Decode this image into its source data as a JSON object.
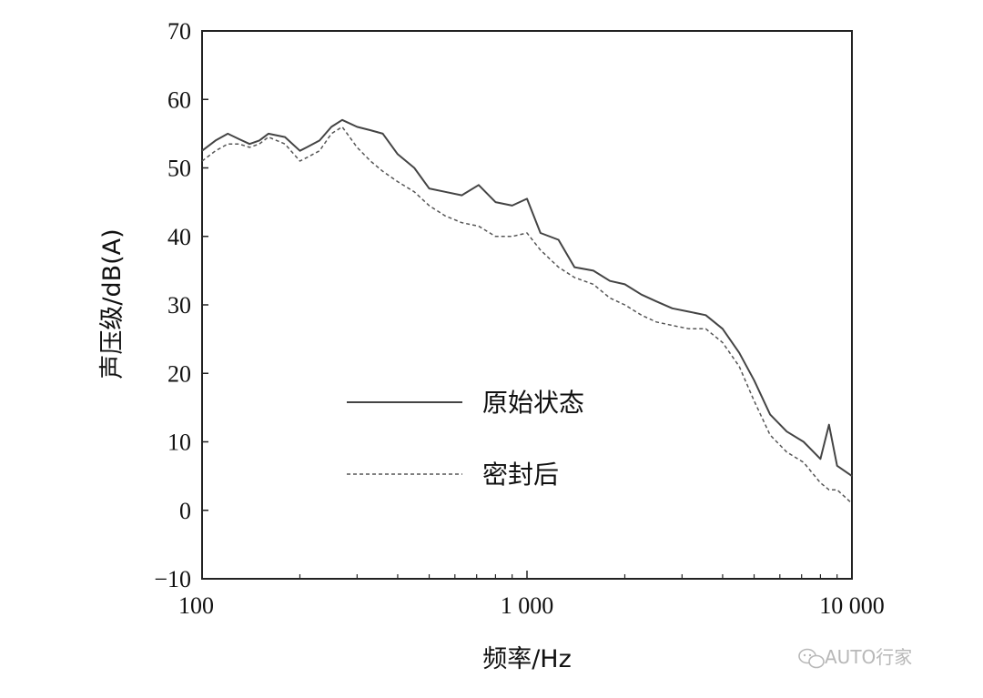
{
  "chart_data": {
    "type": "line",
    "xscale": "log",
    "xlim": [
      100,
      10000
    ],
    "ylim": [
      -10,
      70
    ],
    "grid": false,
    "legend_position": "lower-left",
    "xlabel": "频率/Hz",
    "ylabel": "声压级/dB(A)",
    "x_ticks": [
      100,
      1000,
      10000
    ],
    "x_tick_labels": [
      "100",
      "1 000",
      "10 000"
    ],
    "y_ticks": [
      -10,
      0,
      10,
      20,
      30,
      40,
      50,
      60,
      70
    ],
    "y_tick_labels": [
      "−10",
      "0",
      "10",
      "20",
      "30",
      "40",
      "50",
      "60",
      "70"
    ],
    "x": [
      100,
      110,
      120,
      130,
      140,
      150,
      160,
      180,
      200,
      210,
      230,
      250,
      270,
      300,
      330,
      360,
      400,
      450,
      500,
      560,
      630,
      710,
      800,
      900,
      1000,
      1100,
      1250,
      1400,
      1600,
      1800,
      2000,
      2250,
      2500,
      2800,
      3150,
      3550,
      4000,
      4500,
      5000,
      5600,
      6300,
      7100,
      8000,
      8500,
      9000,
      10000
    ],
    "series": [
      {
        "name": "原始状态",
        "style": "solid",
        "color": "#444444",
        "values": [
          52.5,
          54,
          55,
          54.2,
          53.5,
          54,
          55,
          54.5,
          52.5,
          53,
          54,
          56,
          57,
          56,
          55.5,
          55,
          52,
          50,
          47,
          46.5,
          46,
          47.5,
          45,
          44.5,
          45.5,
          40.5,
          39.5,
          35.5,
          35,
          33.5,
          33,
          31.5,
          30.5,
          29.5,
          29,
          28.5,
          26.5,
          23,
          19,
          14,
          11.5,
          10,
          7.5,
          12.5,
          6.5,
          5
        ]
      },
      {
        "name": "密封后",
        "style": "dashed",
        "color": "#555555",
        "values": [
          51,
          52.5,
          53.5,
          53.5,
          53,
          53.5,
          54.5,
          53.5,
          51,
          51.5,
          52.5,
          55,
          56,
          53,
          51,
          49.5,
          48,
          46.5,
          44.5,
          43,
          42,
          41.5,
          40,
          40,
          40.5,
          38,
          35.5,
          34,
          33,
          31,
          30,
          28.5,
          27.5,
          27,
          26.5,
          26.5,
          24.5,
          21,
          16,
          11,
          8.5,
          7,
          4,
          3,
          3,
          1
        ]
      }
    ]
  },
  "watermark": {
    "text": "AUTO行家",
    "icon": "wechat-icon"
  }
}
